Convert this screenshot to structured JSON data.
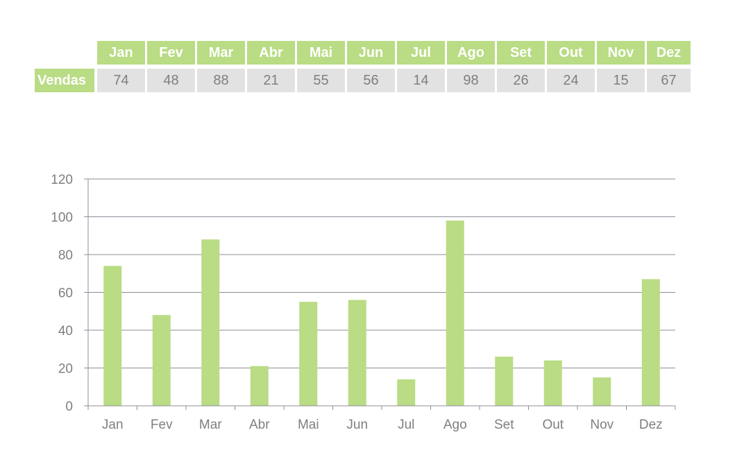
{
  "table": {
    "row_label": "Vendas",
    "months": [
      "Jan",
      "Fev",
      "Mar",
      "Abr",
      "Mai",
      "Jun",
      "Jul",
      "Ago",
      "Set",
      "Out",
      "Nov",
      "Dez"
    ],
    "values": [
      "74",
      "48",
      "88",
      "21",
      "55",
      "56",
      "14",
      "98",
      "26",
      "24",
      "15",
      "67"
    ]
  },
  "chart_data": {
    "type": "bar",
    "categories": [
      "Jan",
      "Fev",
      "Mar",
      "Abr",
      "Mai",
      "Jun",
      "Jul",
      "Ago",
      "Set",
      "Out",
      "Nov",
      "Dez"
    ],
    "series": [
      {
        "values": [
          74,
          48,
          88,
          21,
          55,
          56,
          14,
          98,
          26,
          24,
          15,
          67
        ]
      }
    ],
    "ylim": [
      0,
      120
    ],
    "yticks": [
      0,
      20,
      40,
      60,
      80,
      100,
      120
    ],
    "grid": true,
    "legend": "none",
    "bar_color": "#b9dc84"
  },
  "colors": {
    "header_fill": "#b9dc84",
    "header_text": "#ffffff",
    "value_fill": "#e2e2e2",
    "value_text": "#7f7f7f",
    "grid": "#8c8c9a"
  }
}
